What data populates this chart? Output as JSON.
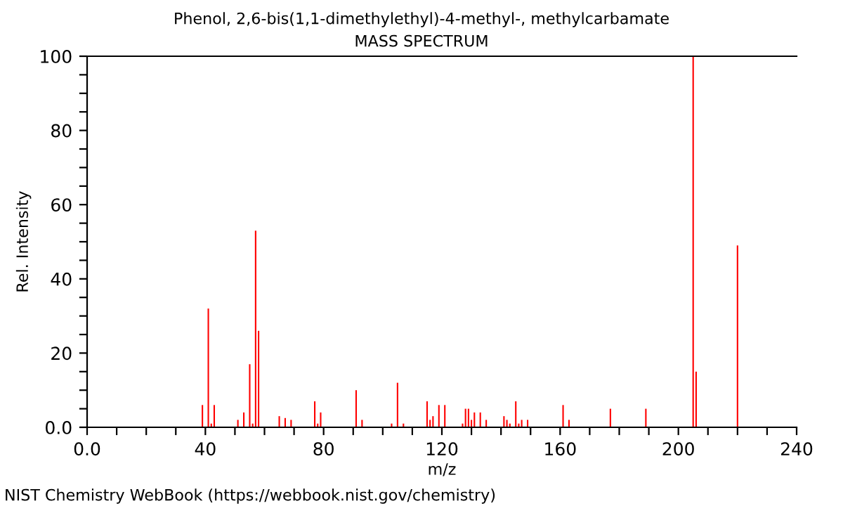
{
  "chart_data": {
    "type": "bar",
    "title": "Phenol, 2,6-bis(1,1-dimethylethyl)-4-methyl-, methylcarbamate",
    "subtitle": "MASS SPECTRUM",
    "xlabel": "m/z",
    "ylabel": "Rel. Intensity",
    "annotations": [
      "NIST Chemistry WebBook (https://webbook.nist.gov/chemistry)"
    ],
    "x": [
      39,
      41,
      42,
      43,
      51,
      53,
      55,
      56,
      57,
      58,
      65,
      67,
      69,
      77,
      78,
      79,
      91,
      93,
      103,
      105,
      107,
      115,
      116,
      117,
      119,
      121,
      127,
      128,
      129,
      130,
      131,
      133,
      135,
      141,
      142,
      143,
      145,
      146,
      147,
      149,
      161,
      163,
      177,
      189,
      205,
      206,
      220
    ],
    "values": [
      6,
      32,
      1,
      6,
      2,
      4,
      17,
      1,
      53,
      26,
      3,
      2.5,
      2,
      7,
      1,
      4,
      10,
      2,
      1,
      12,
      1,
      7,
      2,
      3,
      6,
      6,
      1,
      5,
      5,
      2,
      4,
      4,
      2,
      3,
      2,
      1,
      7,
      1,
      2,
      2,
      6,
      2,
      5,
      5,
      100,
      15,
      49
    ],
    "color": "#ff0000",
    "xlim": [
      0,
      240
    ],
    "ylim": [
      0,
      100
    ],
    "xticks": [
      {
        "value": 0,
        "label": "0.0"
      },
      {
        "value": 10,
        "label": null
      },
      {
        "value": 20,
        "label": null
      },
      {
        "value": 30,
        "label": null
      },
      40,
      {
        "value": 50,
        "label": null
      },
      {
        "value": 60,
        "label": null
      },
      {
        "value": 70,
        "label": null
      },
      80,
      {
        "value": 90,
        "label": null
      },
      {
        "value": 100,
        "label": null
      },
      {
        "value": 110,
        "label": null
      },
      120,
      {
        "value": 130,
        "label": null
      },
      {
        "value": 140,
        "label": null
      },
      {
        "value": 150,
        "label": null
      },
      160,
      {
        "value": 170,
        "label": null
      },
      {
        "value": 180,
        "label": null
      },
      {
        "value": 190,
        "label": null
      },
      200,
      {
        "value": 210,
        "label": null
      },
      {
        "value": 220,
        "label": null
      },
      {
        "value": 230,
        "label": null
      },
      240
    ],
    "yticks": [
      {
        "value": 0,
        "label": "0.0"
      },
      {
        "value": 5,
        "label": null
      },
      {
        "value": 10,
        "label": null
      },
      {
        "value": 15,
        "label": null
      },
      20,
      {
        "value": 25,
        "label": null
      },
      {
        "value": 30,
        "label": null
      },
      {
        "value": 35,
        "label": null
      },
      40,
      {
        "value": 45,
        "label": null
      },
      {
        "value": 50,
        "label": null
      },
      {
        "value": 55,
        "label": null
      },
      60,
      {
        "value": 65,
        "label": null
      },
      {
        "value": 70,
        "label": null
      },
      {
        "value": 75,
        "label": null
      },
      80,
      {
        "value": 85,
        "label": null
      },
      {
        "value": 90,
        "label": null
      },
      {
        "value": 95,
        "label": null
      },
      100
    ],
    "grid": false,
    "legend": false
  }
}
